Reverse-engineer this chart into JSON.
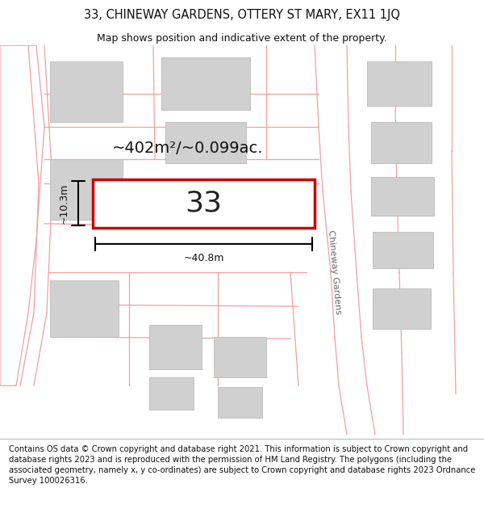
{
  "title": "33, CHINEWAY GARDENS, OTTERY ST MARY, EX11 1JQ",
  "subtitle": "Map shows position and indicative extent of the property.",
  "footer": "Contains OS data © Crown copyright and database right 2021. This information is subject to Crown copyright and database rights 2023 and is reproduced with the permission of HM Land Registry. The polygons (including the associated geometry, namely x, y co-ordinates) are subject to Crown copyright and database rights 2023 Ordnance Survey 100026316.",
  "bg_color": "#ffffff",
  "road_color": "#f0a0a0",
  "building_color": "#d0d0d0",
  "building_outline": "#bbbbbb",
  "plot_color": "#ffffff",
  "plot_outline_color": "#cc0000",
  "area_label": "~402m²/~0.099ac.",
  "width_label": "~40.8m",
  "height_label": "~10.3m",
  "number_label": "33",
  "street_label": "Chineway Gardens",
  "title_fontsize": 10.5,
  "subtitle_fontsize": 9,
  "footer_fontsize": 7.2
}
